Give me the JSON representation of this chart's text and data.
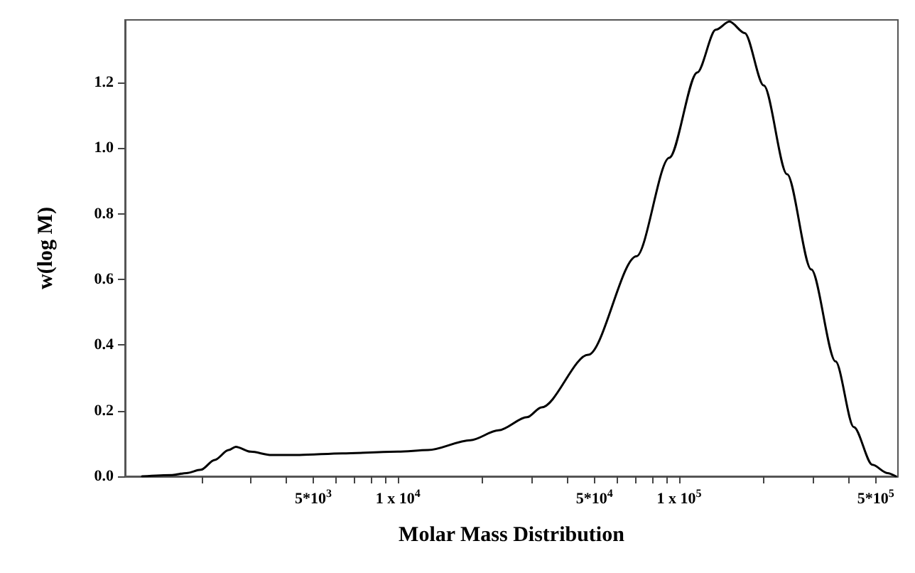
{
  "chart_data": {
    "type": "line",
    "xlabel": "Molar Mass Distribution",
    "ylabel": "w(log M)",
    "log": "x",
    "marker": "none",
    "line_style": "solid",
    "xlim": [
      1070,
      600000
    ],
    "ylim": [
      0,
      1.39
    ],
    "xticks": [
      {
        "value": 2000,
        "label": null
      },
      {
        "value": 3000,
        "label": null
      },
      {
        "value": 4000,
        "label": null
      },
      {
        "value": 5000,
        "label": "5*10$^{3}$"
      },
      {
        "value": 6000,
        "label": null
      },
      {
        "value": 7000,
        "label": null
      },
      {
        "value": 8000,
        "label": null
      },
      {
        "value": 9000,
        "label": null
      },
      {
        "value": 10000,
        "label": "1 x 10$^{4}$"
      },
      {
        "value": 20000,
        "label": null
      },
      {
        "value": 30000,
        "label": null
      },
      {
        "value": 40000,
        "label": null
      },
      {
        "value": 50000,
        "label": "5*10$^{4}$"
      },
      {
        "value": 60000,
        "label": null
      },
      {
        "value": 70000,
        "label": null
      },
      {
        "value": 80000,
        "label": null
      },
      {
        "value": 90000,
        "label": null
      },
      {
        "value": 100000,
        "label": "1 x 10$^{5}$"
      },
      {
        "value": 200000,
        "label": null
      },
      {
        "value": 300000,
        "label": null
      },
      {
        "value": 400000,
        "label": null
      },
      {
        "value": 500000,
        "label": "5*10$^{5}$"
      }
    ],
    "yticks": [
      {
        "value": 0,
        "label": "0.0"
      },
      {
        "value": 0.2,
        "label": "0.2"
      },
      {
        "value": 0.4,
        "label": "0.4"
      },
      {
        "value": 0.6,
        "label": "0.6"
      },
      {
        "value": 0.8,
        "label": "0.8"
      },
      {
        "value": 1.0,
        "label": "1.0"
      },
      {
        "value": 1.2,
        "label": "1.2"
      }
    ],
    "series": [
      {
        "color": "#000000",
        "x": [
          1230,
          1575,
          1770,
          1990,
          2230,
          2500,
          2650,
          2990,
          3550,
          4470,
          6350,
          10000,
          12800,
          18100,
          22800,
          28800,
          32400,
          47500,
          70500,
          92200,
          116000,
          135000,
          151000,
          171000,
          200000,
          242000,
          295000,
          360000,
          418000,
          487000,
          550000,
          590000
        ],
        "values": [
          0,
          0.004,
          0.01,
          0.02,
          0.05,
          0.08,
          0.09,
          0.075,
          0.065,
          0.065,
          0.07,
          0.075,
          0.08,
          0.11,
          0.14,
          0.18,
          0.21,
          0.37,
          0.67,
          0.97,
          1.23,
          1.36,
          1.385,
          1.35,
          1.19,
          0.92,
          0.63,
          0.35,
          0.15,
          0.035,
          0.01,
          0
        ]
      }
    ]
  }
}
